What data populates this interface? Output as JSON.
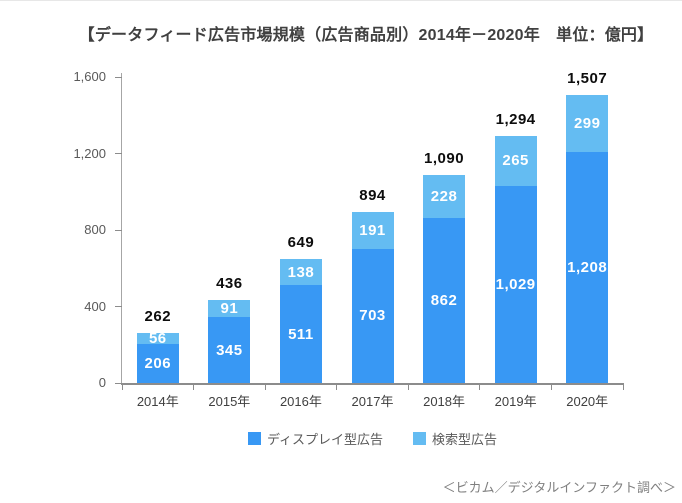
{
  "title": "【データフィード広告市場規模（広告商品別）2014年－2020年　単位：億円】",
  "footer": "＜ビカム／デジタルインファクト調べ＞",
  "chart_data": {
    "type": "bar",
    "stacked": true,
    "title": "データフィード広告市場規模（広告商品別）2014年－2020年",
    "unit": "億円",
    "categories": [
      "2014年",
      "2015年",
      "2016年",
      "2017年",
      "2018年",
      "2019年",
      "2020年"
    ],
    "series": [
      {
        "name": "ディスプレイ型広告",
        "color": "#3898f4",
        "values": [
          206,
          345,
          511,
          703,
          862,
          1029,
          1208
        ]
      },
      {
        "name": "検索型広告",
        "color": "#64bcf2",
        "values": [
          56,
          91,
          138,
          191,
          228,
          265,
          299
        ]
      }
    ],
    "totals": [
      262,
      436,
      649,
      894,
      1090,
      1294,
      1507
    ],
    "ylim": [
      0,
      1600
    ],
    "yticks": [
      0,
      400,
      800,
      1200,
      1600
    ],
    "ytick_labels": [
      "0",
      "400",
      "800",
      "1,200",
      "1,600"
    ],
    "grid": false,
    "legend_position": "bottom",
    "segment_label_color": "#ffffff",
    "total_label_color": "#0d0d0d"
  }
}
